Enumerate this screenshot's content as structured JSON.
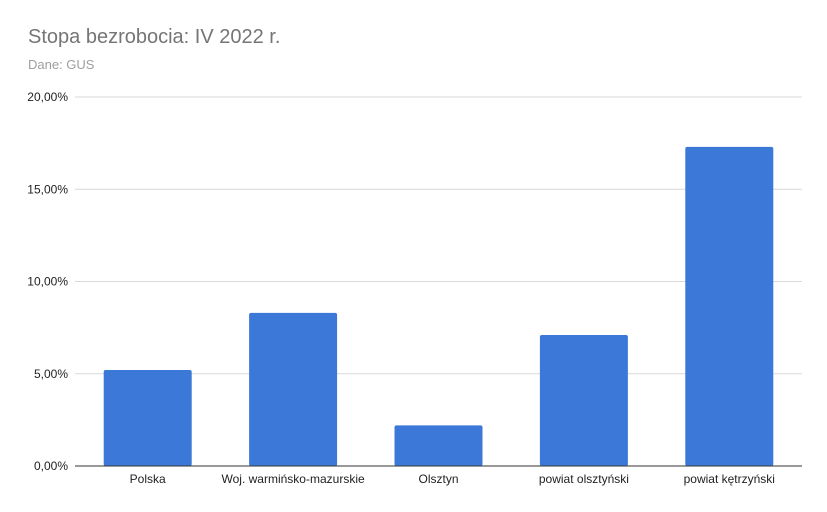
{
  "chart_data": {
    "type": "bar",
    "title": "Stopa bezrobocia: IV 2022 r.",
    "subtitle": "Dane: GUS",
    "categories": [
      "Polska",
      "Woj. warmińsko-mazurskie",
      "Olsztyn",
      "powiat olsztyński",
      "powiat kętrzyński"
    ],
    "values": [
      5.2,
      8.3,
      2.2,
      7.1,
      17.3
    ],
    "yticks": [
      "0,00%",
      "5,00%",
      "10,00%",
      "15,00%",
      "20,00%"
    ],
    "ylim": [
      0,
      20
    ],
    "grid": true,
    "bar_color": "#3c78d8"
  }
}
